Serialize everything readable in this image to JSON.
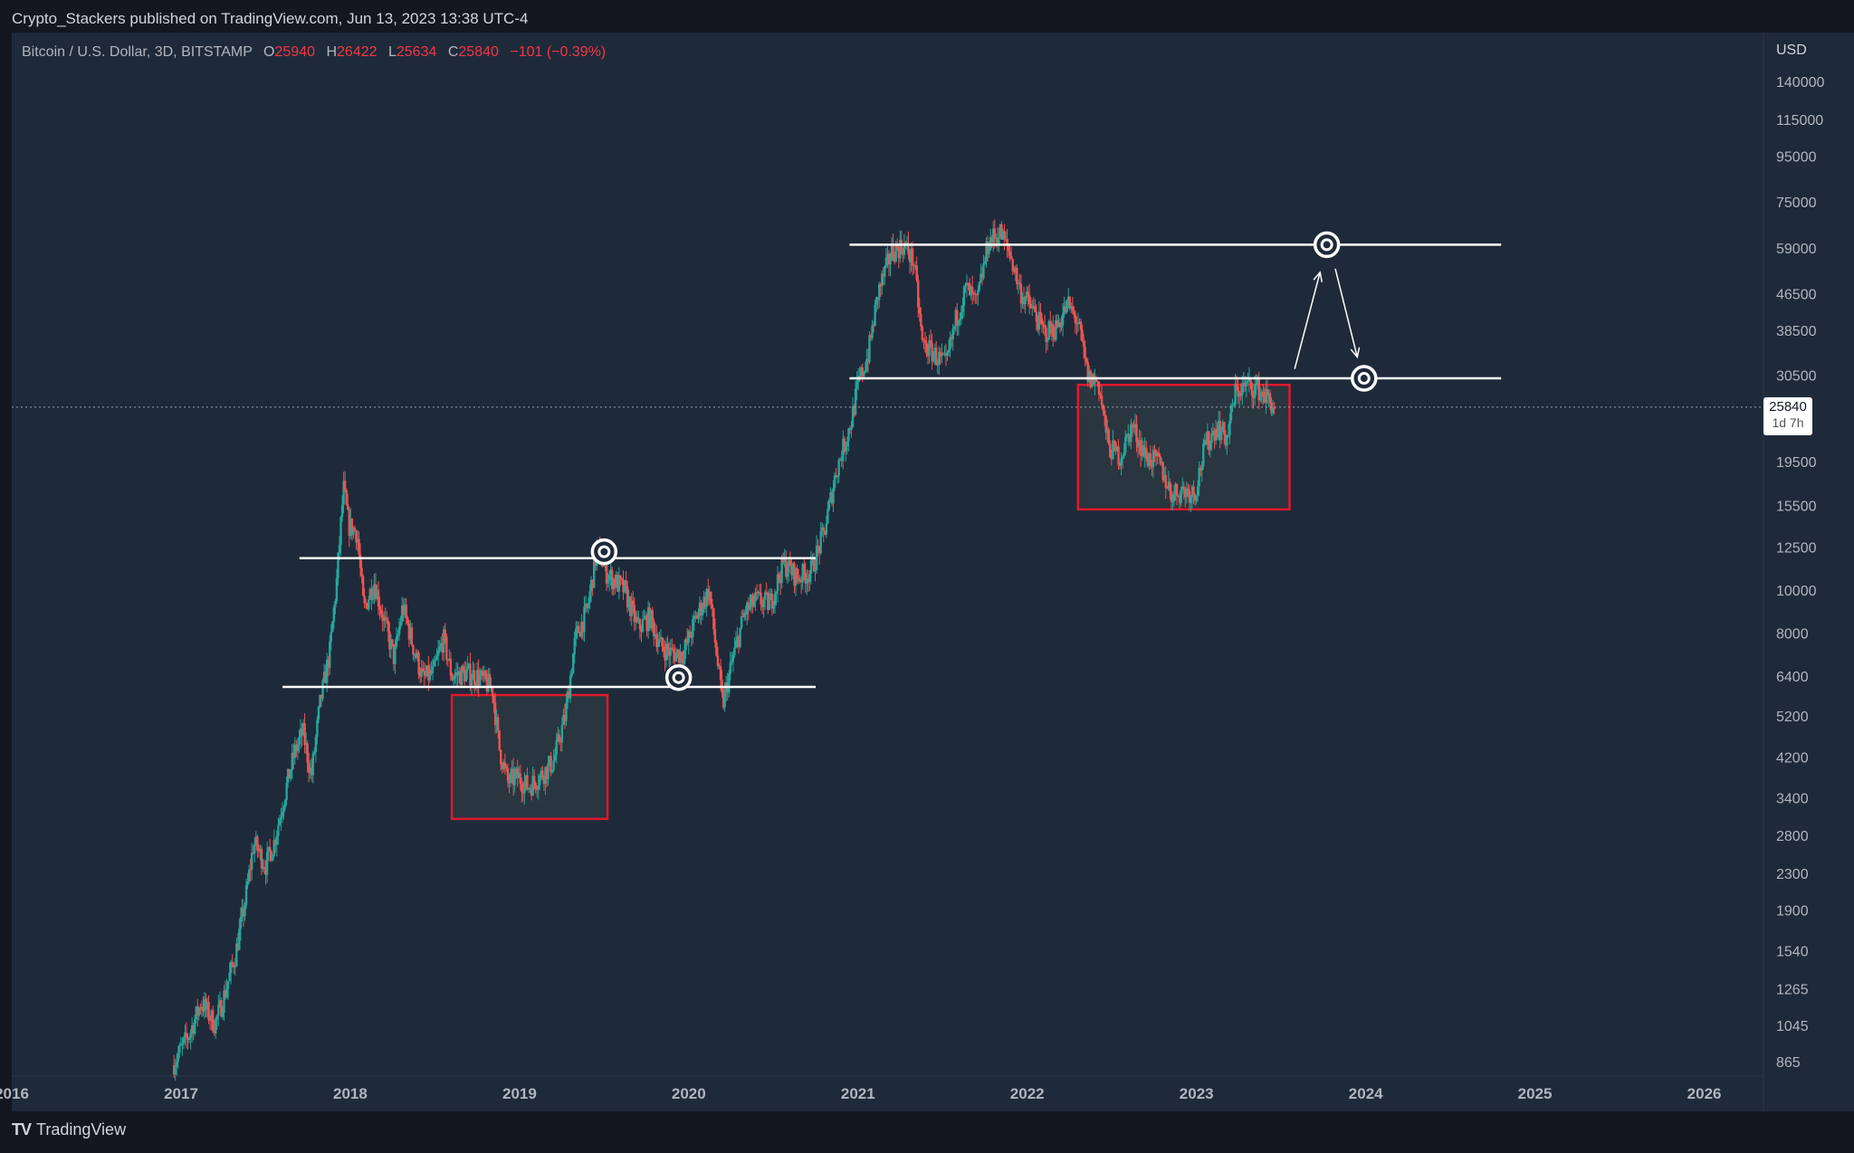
{
  "header": {
    "published": "Crypto_Stackers published on TradingView.com, Jun 13, 2023 13:38 UTC-4"
  },
  "legend": {
    "symbol": "Bitcoin / U.S. Dollar, 3D, BITSTAMP",
    "open_label": "O",
    "open": "25940",
    "high_label": "H",
    "high": "26422",
    "low_label": "L",
    "low": "25634",
    "close_label": "C",
    "close": "25840",
    "change": "−101 (−0.39%)"
  },
  "price_axis": {
    "currency": "USD",
    "ticks": [
      "140000",
      "115000",
      "95000",
      "75000",
      "59000",
      "46500",
      "38500",
      "30500",
      "19500",
      "15500",
      "12500",
      "10000",
      "8000",
      "6400",
      "5200",
      "4200",
      "3400",
      "2800",
      "2300",
      "1900",
      "1540",
      "1265",
      "1045",
      "865"
    ]
  },
  "last_price": {
    "value": "25840",
    "countdown": "1d 7h"
  },
  "time_axis": {
    "ticks": [
      "2016",
      "2017",
      "2018",
      "2019",
      "2020",
      "2021",
      "2022",
      "2023",
      "2024",
      "2025",
      "2026"
    ]
  },
  "footer": {
    "brand": "TradingView"
  },
  "colors": {
    "background": "#1e2a3a",
    "up": "#26a69a",
    "down": "#ef5350",
    "box": "#e0192e",
    "level": "#ffffff",
    "text": "#b2b5be"
  },
  "chart_data": {
    "type": "candlestick",
    "title": "Bitcoin / U.S. Dollar, 3D, BITSTAMP",
    "yscale": "log",
    "ylim": [
      830,
      165000
    ],
    "xlim": [
      2016.0,
      2026.35
    ],
    "series": [
      {
        "name": "BTCUSD",
        "points": [
          [
            2016.95,
            850
          ],
          [
            2017.05,
            1000
          ],
          [
            2017.12,
            1180
          ],
          [
            2017.2,
            1050
          ],
          [
            2017.25,
            1200
          ],
          [
            2017.32,
            1500
          ],
          [
            2017.38,
            2000
          ],
          [
            2017.43,
            2700
          ],
          [
            2017.5,
            2400
          ],
          [
            2017.55,
            2700
          ],
          [
            2017.6,
            3300
          ],
          [
            2017.67,
            4300
          ],
          [
            2017.72,
            4800
          ],
          [
            2017.77,
            3800
          ],
          [
            2017.82,
            5500
          ],
          [
            2017.88,
            7300
          ],
          [
            2017.92,
            10500
          ],
          [
            2017.96,
            17000
          ],
          [
            2017.99,
            14000
          ],
          [
            2018.04,
            13500
          ],
          [
            2018.08,
            9000
          ],
          [
            2018.14,
            10500
          ],
          [
            2018.2,
            8500
          ],
          [
            2018.26,
            7000
          ],
          [
            2018.31,
            9200
          ],
          [
            2018.37,
            7500
          ],
          [
            2018.43,
            6300
          ],
          [
            2018.49,
            6500
          ],
          [
            2018.55,
            7800
          ],
          [
            2018.6,
            6400
          ],
          [
            2018.68,
            6500
          ],
          [
            2018.75,
            6400
          ],
          [
            2018.84,
            6000
          ],
          [
            2018.88,
            4400
          ],
          [
            2018.93,
            3700
          ],
          [
            2018.99,
            3800
          ],
          [
            2019.05,
            3600
          ],
          [
            2019.12,
            3800
          ],
          [
            2019.2,
            4100
          ],
          [
            2019.27,
            5200
          ],
          [
            2019.33,
            7800
          ],
          [
            2019.4,
            9000
          ],
          [
            2019.46,
            12500
          ],
          [
            2019.51,
            11000
          ],
          [
            2019.56,
            10500
          ],
          [
            2019.62,
            10000
          ],
          [
            2019.7,
            8200
          ],
          [
            2019.77,
            8700
          ],
          [
            2019.83,
            7500
          ],
          [
            2019.9,
            7200
          ],
          [
            2019.97,
            7200
          ],
          [
            2020.05,
            8800
          ],
          [
            2020.12,
            10000
          ],
          [
            2020.2,
            5500
          ],
          [
            2020.26,
            7000
          ],
          [
            2020.33,
            8900
          ],
          [
            2020.4,
            9500
          ],
          [
            2020.48,
            9300
          ],
          [
            2020.56,
            11500
          ],
          [
            2020.64,
            10700
          ],
          [
            2020.72,
            11000
          ],
          [
            2020.8,
            13500
          ],
          [
            2020.87,
            18500
          ],
          [
            2020.96,
            24000
          ],
          [
            2021.0,
            29000
          ],
          [
            2021.06,
            34000
          ],
          [
            2021.12,
            47000
          ],
          [
            2021.2,
            58000
          ],
          [
            2021.27,
            60000
          ],
          [
            2021.33,
            55000
          ],
          [
            2021.38,
            36000
          ],
          [
            2021.45,
            34000
          ],
          [
            2021.52,
            32000
          ],
          [
            2021.58,
            41000
          ],
          [
            2021.64,
            48000
          ],
          [
            2021.7,
            44000
          ],
          [
            2021.77,
            61000
          ],
          [
            2021.84,
            64000
          ],
          [
            2021.9,
            57000
          ],
          [
            2021.96,
            47000
          ],
          [
            2022.03,
            43000
          ],
          [
            2022.1,
            38000
          ],
          [
            2022.17,
            39000
          ],
          [
            2022.24,
            44000
          ],
          [
            2022.3,
            40000
          ],
          [
            2022.36,
            30000
          ],
          [
            2022.42,
            29500
          ],
          [
            2022.48,
            21000
          ],
          [
            2022.55,
            20000
          ],
          [
            2022.62,
            23500
          ],
          [
            2022.7,
            20000
          ],
          [
            2022.78,
            19300
          ],
          [
            2022.85,
            16500
          ],
          [
            2022.92,
            16800
          ],
          [
            2022.99,
            16600
          ],
          [
            2023.05,
            21000
          ],
          [
            2023.12,
            23500
          ],
          [
            2023.18,
            22000
          ],
          [
            2023.23,
            28000
          ],
          [
            2023.3,
            29000
          ],
          [
            2023.36,
            28500
          ],
          [
            2023.42,
            27000
          ],
          [
            2023.46,
            25840
          ]
        ]
      }
    ],
    "levels": [
      {
        "price": 60000,
        "from": 2020.95,
        "to": 2024.8
      },
      {
        "price": 30000,
        "from": 2020.95,
        "to": 2024.8
      },
      {
        "price": 11800,
        "from": 2017.7,
        "to": 2020.75
      },
      {
        "price": 6050,
        "from": 2017.6,
        "to": 2020.75
      }
    ],
    "boxes": [
      {
        "from": 2018.6,
        "to": 2019.52,
        "high": 5800,
        "low": 3050
      },
      {
        "from": 2022.3,
        "to": 2023.55,
        "high": 29000,
        "low": 15200
      }
    ],
    "targets": [
      {
        "x": 2019.5,
        "price": 12200
      },
      {
        "x": 2019.94,
        "price": 6350
      },
      {
        "x": 2023.77,
        "price": 60000
      },
      {
        "x": 2023.99,
        "price": 30000
      }
    ],
    "arrows": [
      {
        "x1": 2023.58,
        "p1": 31500,
        "x2": 2023.73,
        "p2": 52000
      },
      {
        "x1": 2023.82,
        "p1": 53000,
        "x2": 2023.95,
        "p2": 33500
      }
    ]
  }
}
